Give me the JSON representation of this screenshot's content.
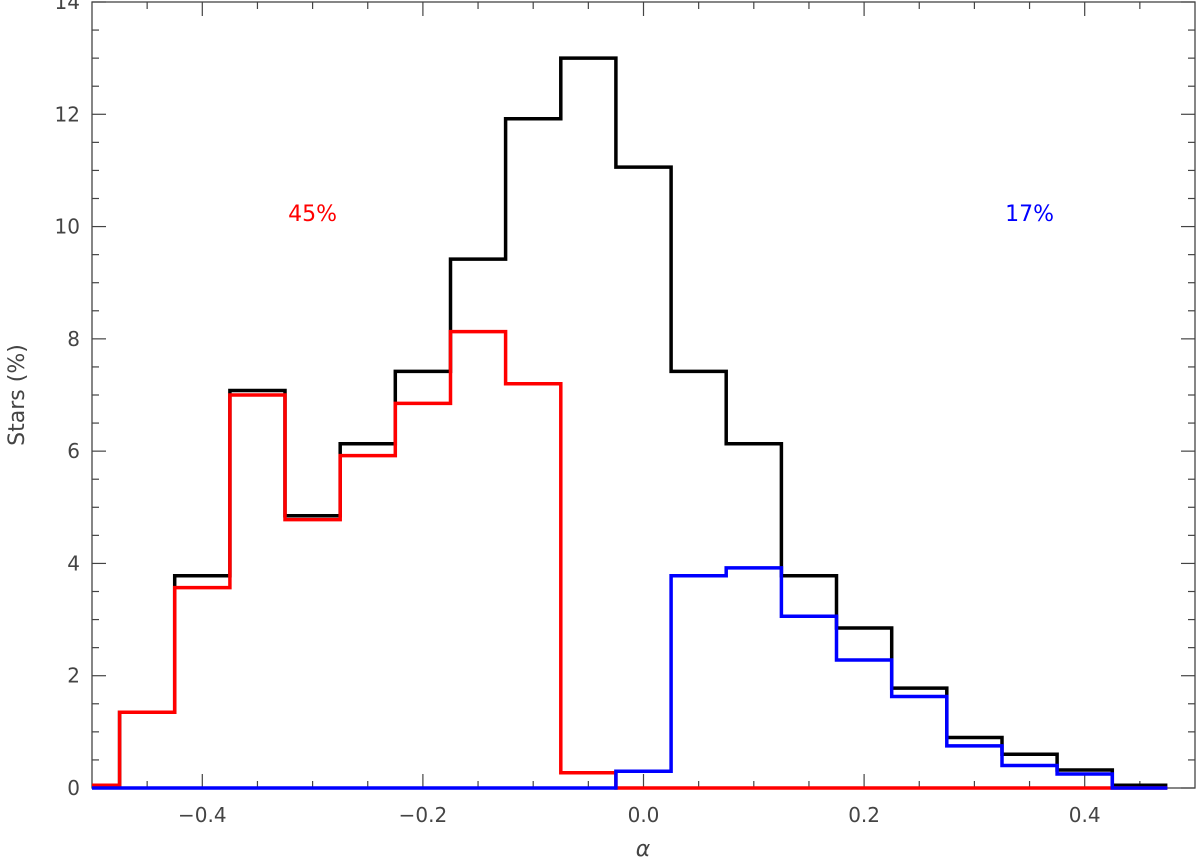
{
  "chart_data": {
    "type": "histogram-step",
    "xlabel": "α",
    "ylabel": "Stars (%)",
    "xlim": [
      -0.5,
      0.5
    ],
    "ylim": [
      0,
      14
    ],
    "x_ticks": [
      -0.4,
      -0.2,
      0.0,
      0.2,
      0.4
    ],
    "x_tick_labels": [
      "−0.4",
      "−0.2",
      "0.0",
      "0.2",
      "0.4"
    ],
    "y_ticks": [
      0,
      2,
      4,
      6,
      8,
      10,
      12,
      14
    ],
    "y_tick_labels": [
      "0",
      "2",
      "4",
      "6",
      "8",
      "10",
      "12",
      "14"
    ],
    "bin_edges": [
      -0.525,
      -0.475,
      -0.425,
      -0.375,
      -0.325,
      -0.275,
      -0.225,
      -0.175,
      -0.125,
      -0.075,
      -0.025,
      0.025,
      0.075,
      0.125,
      0.175,
      0.225,
      0.275,
      0.325,
      0.375,
      0.425,
      0.475
    ],
    "series": [
      {
        "color": "#000000",
        "values": [
          0.05,
          1.35,
          3.78,
          7.08,
          4.85,
          6.13,
          7.42,
          9.42,
          11.92,
          13.0,
          11.06,
          7.42,
          6.13,
          3.78,
          2.85,
          1.78,
          0.9,
          0.6,
          0.32,
          0.05
        ]
      },
      {
        "color": "#ff0000",
        "values": [
          0.05,
          1.35,
          3.57,
          7.0,
          4.78,
          5.92,
          6.85,
          8.13,
          7.2,
          0.27,
          0.0,
          0.0,
          0.0,
          0.0,
          0.0,
          0.0,
          0.0,
          0.0,
          0.0,
          0.0
        ]
      },
      {
        "color": "#0000ff",
        "values": [
          0.0,
          0.0,
          0.0,
          0.0,
          0.0,
          0.0,
          0.0,
          0.0,
          0.0,
          0.0,
          0.3,
          3.78,
          3.92,
          3.06,
          2.28,
          1.63,
          0.75,
          0.4,
          0.25,
          0.0
        ]
      }
    ],
    "annotations": [
      {
        "text": "45%",
        "x": -0.3,
        "y": 10.1,
        "color": "#ff0000"
      },
      {
        "text": "17%",
        "x": 0.35,
        "y": 10.1,
        "color": "#0000ff"
      }
    ],
    "grid": false,
    "legend": "none"
  }
}
